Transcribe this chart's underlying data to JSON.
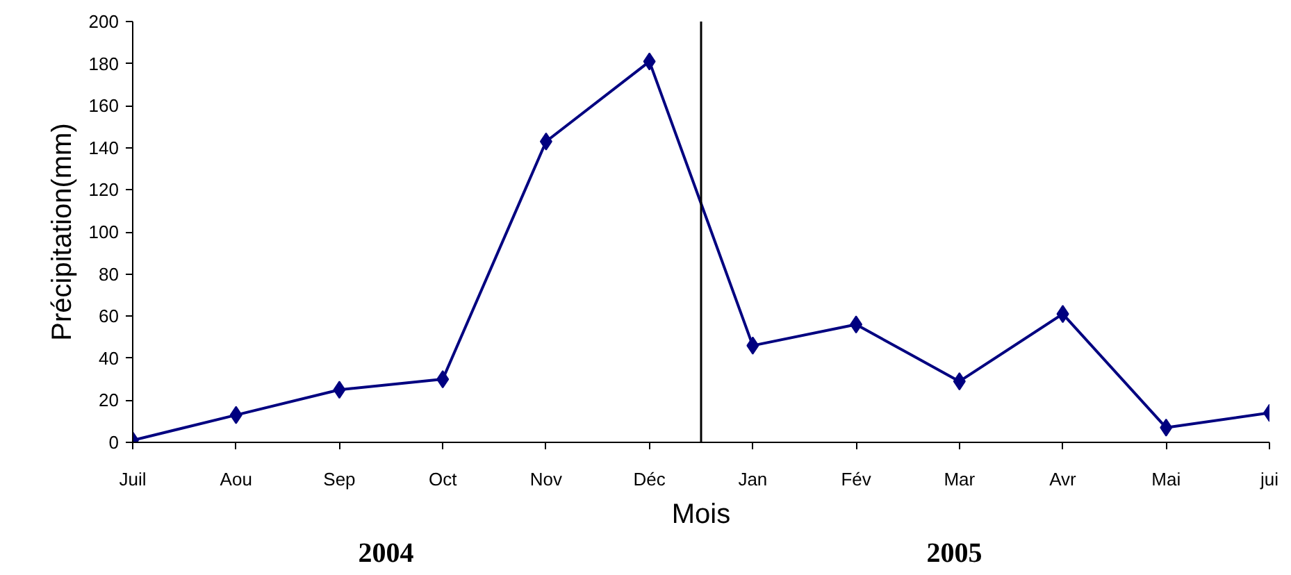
{
  "chart_data": {
    "type": "line",
    "xlabel": "Mois",
    "ylabel": "Précipitation(mm)",
    "categories": [
      "Juil",
      "Aou",
      "Sep",
      "Oct",
      "Nov",
      "Déc",
      "Jan",
      "Fév",
      "Mar",
      "Avr",
      "Mai",
      "jui"
    ],
    "series": [
      {
        "color": "#000080",
        "values": [
          1,
          13,
          25,
          30,
          143,
          181,
          46,
          56,
          29,
          61,
          7,
          14
        ]
      }
    ],
    "ylim": [
      0,
      200
    ],
    "yticks": [
      0,
      20,
      40,
      60,
      80,
      100,
      120,
      140,
      160,
      180,
      200
    ],
    "marker": "diamond",
    "line_style": "solid",
    "annotations": [
      "2004",
      "2005"
    ]
  }
}
